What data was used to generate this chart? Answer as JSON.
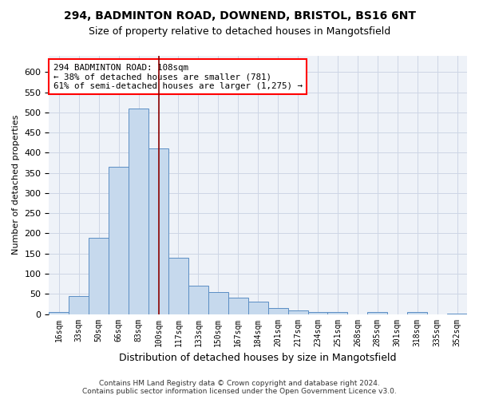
{
  "title_line1": "294, BADMINTON ROAD, DOWNEND, BRISTOL, BS16 6NT",
  "title_line2": "Size of property relative to detached houses in Mangotsfield",
  "xlabel": "Distribution of detached houses by size in Mangotsfield",
  "ylabel": "Number of detached properties",
  "footer_line1": "Contains HM Land Registry data © Crown copyright and database right 2024.",
  "footer_line2": "Contains public sector information licensed under the Open Government Licence v3.0.",
  "categories": [
    "16sqm",
    "33sqm",
    "50sqm",
    "66sqm",
    "83sqm",
    "100sqm",
    "117sqm",
    "133sqm",
    "150sqm",
    "167sqm",
    "184sqm",
    "201sqm",
    "217sqm",
    "234sqm",
    "251sqm",
    "268sqm",
    "285sqm",
    "301sqm",
    "318sqm",
    "335sqm",
    "352sqm"
  ],
  "values": [
    5,
    45,
    190,
    365,
    510,
    410,
    140,
    70,
    55,
    40,
    30,
    15,
    10,
    5,
    5,
    0,
    5,
    0,
    5,
    0,
    2
  ],
  "bar_color": "#c6d9ed",
  "bar_edge_color": "#5b8ec4",
  "vline_x_idx": 5,
  "vline_color": "#8b0000",
  "annotation_text": "294 BADMINTON ROAD: 108sqm\n← 38% of detached houses are smaller (781)\n61% of semi-detached houses are larger (1,275) →",
  "annotation_box_color": "white",
  "annotation_box_edge": "red",
  "ylim": [
    0,
    640
  ],
  "yticks": [
    0,
    50,
    100,
    150,
    200,
    250,
    300,
    350,
    400,
    450,
    500,
    550,
    600
  ],
  "grid_color": "#cdd6e5",
  "bg_color": "#eef2f8"
}
